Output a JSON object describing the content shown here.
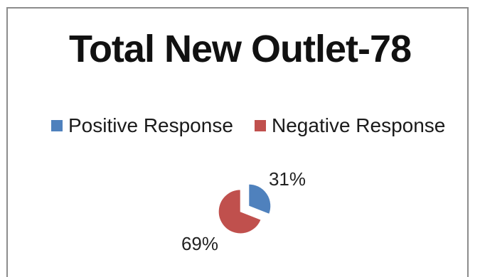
{
  "chart_data": {
    "type": "pie",
    "title": "Total New Outlet-78",
    "legend_position": "top",
    "categories": [
      "Positive Response",
      "Negative Response"
    ],
    "values": [
      31,
      69
    ],
    "data_labels": [
      "31%",
      "69%"
    ],
    "colors": [
      "#4f81bd",
      "#c0504d"
    ]
  }
}
